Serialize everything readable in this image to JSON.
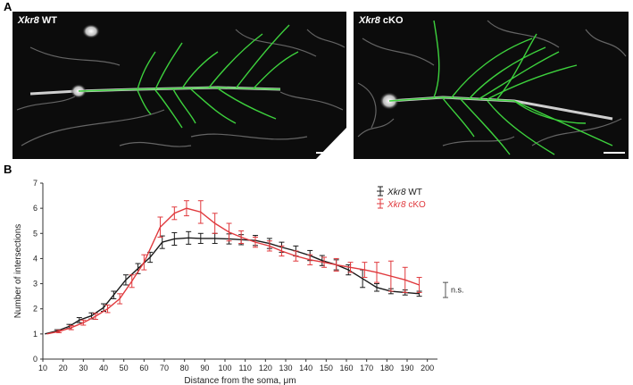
{
  "panel_a": {
    "letter": "A",
    "images": [
      {
        "genotype": "Xkr8",
        "condition": "WT"
      },
      {
        "genotype": "Xkr8",
        "condition": "cKO"
      }
    ]
  },
  "panel_b": {
    "letter": "B"
  },
  "colors": {
    "wt": "#1a1a1a",
    "cko": "#e0393d",
    "trace": "#3dd13d",
    "sig": "#555555"
  },
  "chart_data": {
    "type": "line",
    "xlabel": "Distance from the soma, μm",
    "ylabel": "Number of intersections",
    "xlim": [
      10,
      205
    ],
    "ylim": [
      0,
      7
    ],
    "xticks": [
      10,
      20,
      30,
      40,
      50,
      60,
      70,
      80,
      90,
      100,
      110,
      120,
      130,
      140,
      150,
      160,
      170,
      180,
      190,
      200
    ],
    "yticks": [
      0,
      1,
      2,
      3,
      4,
      5,
      6,
      7
    ],
    "legend": "top-right",
    "significance": "n.s.",
    "series": [
      {
        "name": "Xkr8 WT",
        "genotype": "Xkr8",
        "label_suffix": "WT",
        "color": "#1a1a1a",
        "x": [
          11,
          17,
          23,
          28,
          34,
          40,
          45,
          51,
          57,
          63,
          69,
          75,
          82,
          88,
          95,
          102,
          108,
          115,
          122,
          128,
          135,
          142,
          148,
          155,
          161,
          168,
          175,
          182,
          189,
          196
        ],
        "y": [
          1.0,
          1.12,
          1.3,
          1.55,
          1.72,
          2.05,
          2.55,
          3.15,
          3.6,
          4.05,
          4.65,
          4.78,
          4.82,
          4.8,
          4.8,
          4.78,
          4.75,
          4.72,
          4.6,
          4.45,
          4.3,
          4.12,
          3.92,
          3.75,
          3.55,
          3.2,
          2.85,
          2.7,
          2.65,
          2.6
        ],
        "err": [
          0,
          0.05,
          0.08,
          0.1,
          0.12,
          0.15,
          0.15,
          0.2,
          0.2,
          0.2,
          0.25,
          0.25,
          0.25,
          0.2,
          0.2,
          0.2,
          0.2,
          0.2,
          0.2,
          0.2,
          0.2,
          0.2,
          0.2,
          0.2,
          0.2,
          0.35,
          0.15,
          0.1,
          0.1,
          0.1
        ]
      },
      {
        "name": "Xkr8 cKO",
        "genotype": "Xkr8",
        "label_suffix": "cKO",
        "color": "#e0393d",
        "x": [
          12,
          18,
          24,
          30,
          36,
          42,
          48,
          54,
          60,
          68,
          75,
          81,
          88,
          95,
          102,
          108,
          115,
          122,
          128,
          135,
          142,
          149,
          155,
          162,
          169,
          175,
          182,
          189,
          196
        ],
        "y": [
          1.0,
          1.1,
          1.25,
          1.45,
          1.7,
          2.0,
          2.4,
          3.1,
          3.85,
          5.25,
          5.8,
          6.0,
          5.85,
          5.4,
          5.05,
          4.85,
          4.65,
          4.5,
          4.3,
          4.1,
          3.95,
          3.85,
          3.75,
          3.65,
          3.55,
          3.45,
          3.3,
          3.15,
          2.95
        ]
      }
    ]
  },
  "cko_err": [
    0,
    0.05,
    0.08,
    0.1,
    0.12,
    0.15,
    0.2,
    0.25,
    0.3,
    0.4,
    0.25,
    0.3,
    0.45,
    0.4,
    0.35,
    0.25,
    0.2,
    0.2,
    0.2,
    0.2,
    0.2,
    0.2,
    0.25,
    0.2,
    0.3,
    0.4,
    0.6,
    0.5,
    0.3
  ]
}
